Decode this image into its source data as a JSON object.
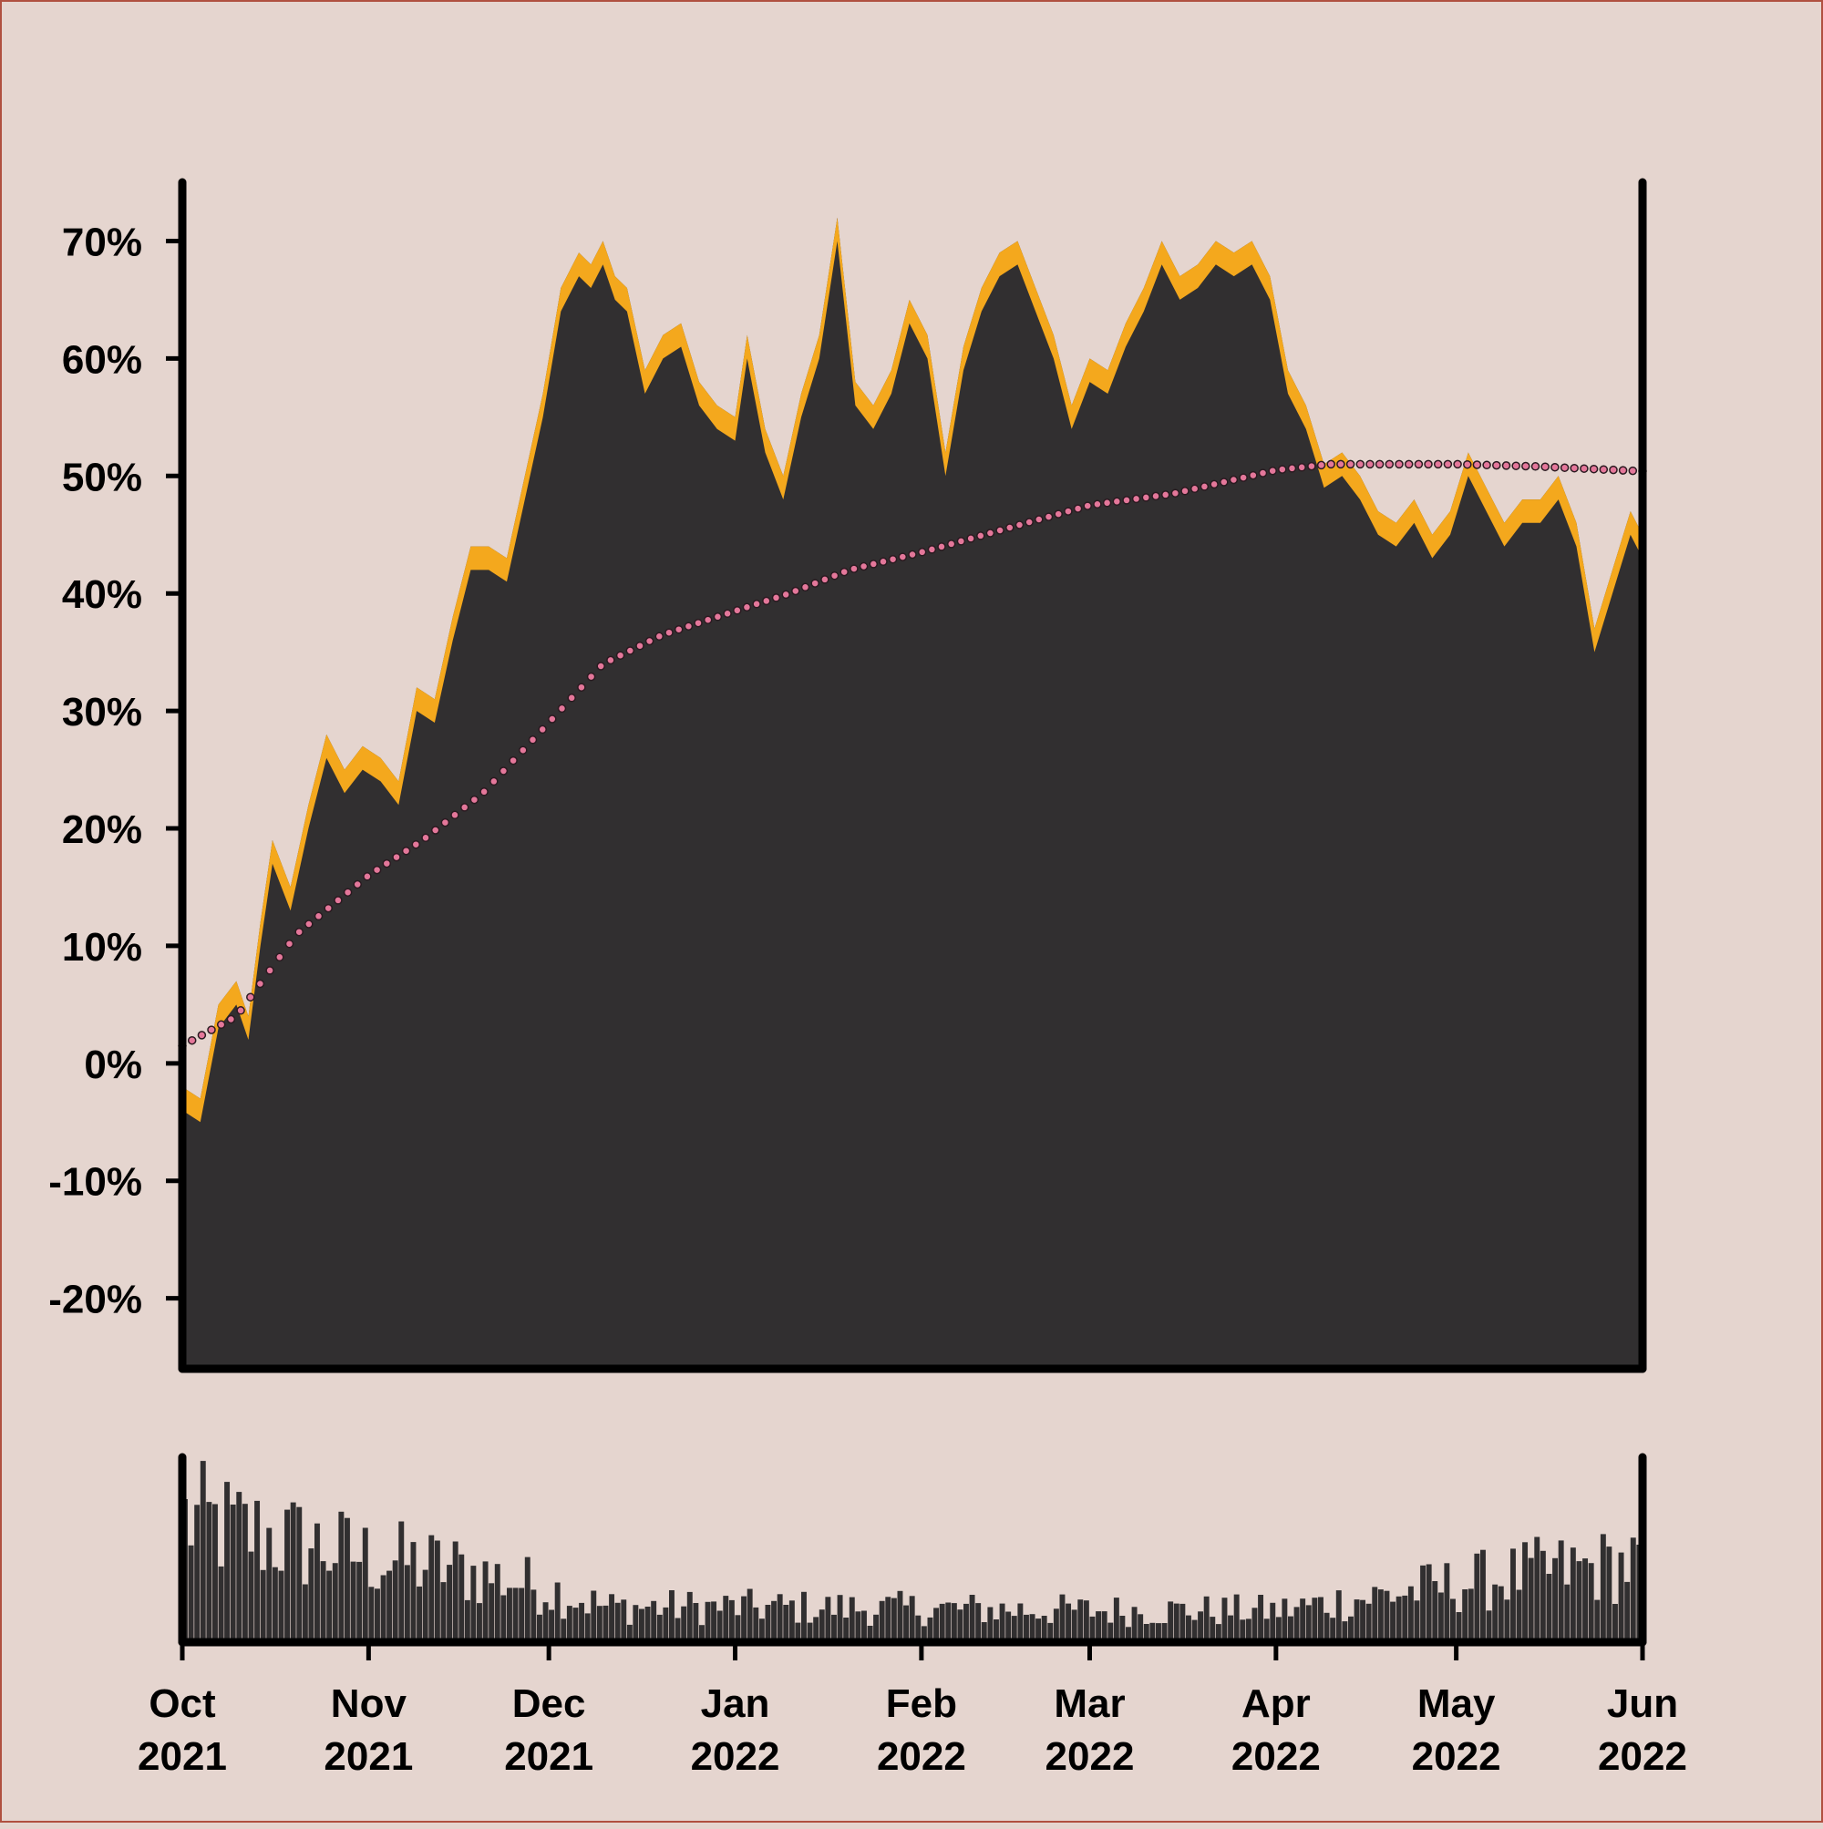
{
  "chart_data": [
    {
      "type": "area",
      "title": "",
      "xlabel": "",
      "ylabel": "",
      "y_unit": "%",
      "ylim": [
        -26,
        75
      ],
      "xlim": [
        "2021-10-01",
        "2022-06-01"
      ],
      "grid": false,
      "legend": "none",
      "y_ticks": [
        "70%",
        "60%",
        "50%",
        "40%",
        "30%",
        "20%",
        "10%",
        "0%",
        "-10%",
        "-20%"
      ],
      "x_ticks": [
        {
          "month": "Oct",
          "year": "2021"
        },
        {
          "month": "Nov",
          "year": "2021"
        },
        {
          "month": "Dec",
          "year": "2021"
        },
        {
          "month": "Jan",
          "year": "2022"
        },
        {
          "month": "Feb",
          "year": "2022"
        },
        {
          "month": "Mar",
          "year": "2022"
        },
        {
          "month": "Apr",
          "year": "2022"
        },
        {
          "month": "May",
          "year": "2022"
        },
        {
          "month": "Jun",
          "year": "2022"
        }
      ],
      "series": [
        {
          "role": "daily value (filled area with upper band)",
          "x": [
            "2021-10-01",
            "2021-10-04",
            "2021-10-07",
            "2021-10-10",
            "2021-10-12",
            "2021-10-14",
            "2021-10-16",
            "2021-10-19",
            "2021-10-22",
            "2021-10-25",
            "2021-10-28",
            "2021-10-31",
            "2021-11-03",
            "2021-11-06",
            "2021-11-09",
            "2021-11-12",
            "2021-11-15",
            "2021-11-18",
            "2021-11-21",
            "2021-11-24",
            "2021-11-27",
            "2021-11-30",
            "2021-12-03",
            "2021-12-06",
            "2021-12-08",
            "2021-12-10",
            "2021-12-12",
            "2021-12-14",
            "2021-12-17",
            "2021-12-20",
            "2021-12-23",
            "2021-12-26",
            "2021-12-29",
            "2022-01-01",
            "2022-01-03",
            "2022-01-06",
            "2022-01-09",
            "2022-01-12",
            "2022-01-15",
            "2022-01-18",
            "2022-01-21",
            "2022-01-24",
            "2022-01-27",
            "2022-01-30",
            "2022-02-02",
            "2022-02-05",
            "2022-02-08",
            "2022-02-11",
            "2022-02-14",
            "2022-02-17",
            "2022-02-20",
            "2022-02-23",
            "2022-02-26",
            "2022-03-01",
            "2022-03-04",
            "2022-03-07",
            "2022-03-10",
            "2022-03-13",
            "2022-03-16",
            "2022-03-19",
            "2022-03-22",
            "2022-03-25",
            "2022-03-28",
            "2022-03-31",
            "2022-04-03",
            "2022-04-06",
            "2022-04-09",
            "2022-04-12",
            "2022-04-15",
            "2022-04-18",
            "2022-04-21",
            "2022-04-24",
            "2022-04-27",
            "2022-04-30",
            "2022-05-03",
            "2022-05-06",
            "2022-05-09",
            "2022-05-12",
            "2022-05-15",
            "2022-05-18",
            "2022-05-21",
            "2022-05-24",
            "2022-05-27",
            "2022-05-30",
            "2022-06-01"
          ],
          "y": [
            -2,
            -3,
            5,
            7,
            4,
            12,
            19,
            15,
            22,
            28,
            25,
            27,
            26,
            24,
            32,
            31,
            38,
            44,
            44,
            43,
            50,
            57,
            66,
            69,
            68,
            70,
            67,
            66,
            59,
            62,
            63,
            58,
            56,
            55,
            62,
            54,
            50,
            57,
            62,
            72,
            58,
            56,
            59,
            65,
            62,
            52,
            61,
            66,
            69,
            70,
            66,
            62,
            56,
            60,
            59,
            63,
            66,
            70,
            67,
            68,
            70,
            69,
            70,
            67,
            59,
            56,
            51,
            52,
            50,
            47,
            46,
            48,
            45,
            47,
            52,
            49,
            46,
            48,
            48,
            50,
            46,
            37,
            42,
            47,
            45
          ],
          "band_width": 2
        },
        {
          "role": "cumulative trend (dotted)",
          "x": [
            "2021-10-01",
            "2021-10-10",
            "2021-10-20",
            "2021-11-01",
            "2021-11-10",
            "2021-11-20",
            "2021-12-01",
            "2021-12-10",
            "2021-12-20",
            "2022-01-01",
            "2022-01-10",
            "2022-01-20",
            "2022-02-01",
            "2022-02-15",
            "2022-03-01",
            "2022-03-15",
            "2022-04-01",
            "2022-04-10",
            "2022-04-20",
            "2022-05-01",
            "2022-05-15",
            "2022-06-01"
          ],
          "y": [
            1.5,
            4,
            11,
            16,
            19,
            23,
            29,
            34,
            36.5,
            38.5,
            40,
            42,
            43.5,
            45.5,
            47.5,
            48.5,
            50.5,
            51,
            51,
            51,
            50.8,
            50.4
          ]
        }
      ]
    },
    {
      "type": "bar",
      "title": "",
      "role": "daily volume (unlabeled axis)",
      "y_scale": "relative (no axis labels shown)",
      "ylim": [
        0,
        100
      ],
      "x_range": [
        "2021-10-01",
        "2022-06-01"
      ],
      "envelope": {
        "x": [
          "2021-10-01",
          "2021-10-15",
          "2021-11-01",
          "2021-11-15",
          "2021-12-01",
          "2021-12-10",
          "2022-01-01",
          "2022-02-01",
          "2022-03-01",
          "2022-04-01",
          "2022-04-15",
          "2022-05-01",
          "2022-05-15",
          "2022-06-01"
        ],
        "y": [
          70,
          60,
          48,
          42,
          30,
          20,
          20,
          19,
          18,
          18,
          25,
          33,
          40,
          45
        ]
      }
    }
  ]
}
